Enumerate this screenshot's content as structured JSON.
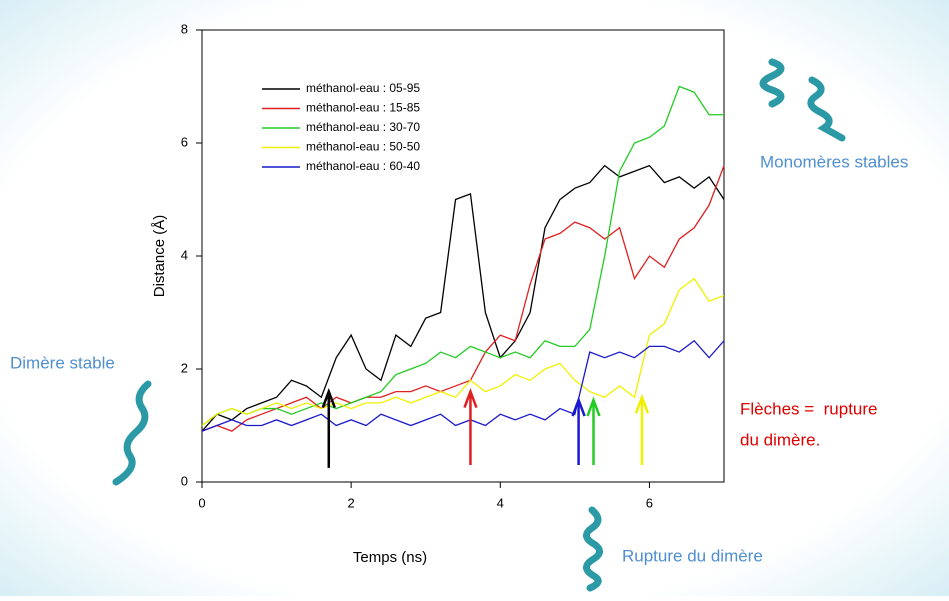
{
  "chart_data": {
    "type": "line",
    "xlabel": "Temps (ns)",
    "ylabel": "Distance (Å)",
    "x": [
      0,
      0.2,
      0.4,
      0.6,
      0.8,
      1.0,
      1.2,
      1.4,
      1.6,
      1.8,
      2.0,
      2.2,
      2.4,
      2.6,
      2.8,
      3.0,
      3.2,
      3.4,
      3.6,
      3.8,
      4.0,
      4.2,
      4.4,
      4.6,
      4.8,
      5.0,
      5.2,
      5.4,
      5.6,
      5.8,
      6.0,
      6.2,
      6.4,
      6.6,
      6.8,
      7.0
    ],
    "series": [
      {
        "name": "méthanol-eau : 05-95",
        "color": "#000000",
        "values": [
          0.9,
          1.2,
          1.1,
          1.3,
          1.4,
          1.5,
          1.8,
          1.7,
          1.5,
          2.2,
          2.6,
          2.0,
          1.8,
          2.6,
          2.4,
          2.9,
          3.0,
          5.0,
          5.1,
          3.0,
          2.2,
          2.5,
          3.0,
          4.5,
          5.0,
          5.2,
          5.3,
          5.6,
          5.4,
          5.5,
          5.6,
          5.3,
          5.4,
          5.2,
          5.4,
          5.0
        ]
      },
      {
        "name": "méthanol-eau : 15-85",
        "color": "#e02020",
        "values": [
          0.9,
          1.0,
          0.9,
          1.1,
          1.2,
          1.3,
          1.4,
          1.5,
          1.3,
          1.5,
          1.4,
          1.5,
          1.5,
          1.6,
          1.6,
          1.7,
          1.6,
          1.7,
          1.8,
          2.3,
          2.6,
          2.5,
          3.5,
          4.3,
          4.4,
          4.6,
          4.5,
          4.3,
          4.5,
          3.6,
          4.0,
          3.8,
          4.3,
          4.5,
          4.9,
          5.6
        ]
      },
      {
        "name": "méthanol-eau : 30-70",
        "color": "#22cc22",
        "values": [
          1.0,
          1.2,
          1.3,
          1.2,
          1.3,
          1.3,
          1.2,
          1.3,
          1.4,
          1.3,
          1.4,
          1.5,
          1.6,
          1.9,
          2.0,
          2.1,
          2.3,
          2.2,
          2.4,
          2.3,
          2.2,
          2.3,
          2.2,
          2.5,
          2.4,
          2.4,
          2.7,
          4.0,
          5.5,
          6.0,
          6.1,
          6.3,
          7.0,
          6.9,
          6.5,
          6.5
        ]
      },
      {
        "name": "méthanol-eau : 50-50",
        "color": "#f0f000",
        "values": [
          1.0,
          1.2,
          1.3,
          1.2,
          1.3,
          1.4,
          1.3,
          1.4,
          1.3,
          1.4,
          1.3,
          1.4,
          1.4,
          1.5,
          1.4,
          1.5,
          1.6,
          1.5,
          1.8,
          1.6,
          1.7,
          1.9,
          1.8,
          2.0,
          2.1,
          1.8,
          1.6,
          1.5,
          1.7,
          1.5,
          2.6,
          2.8,
          3.4,
          3.6,
          3.2,
          3.3
        ]
      },
      {
        "name": "méthanol-eau : 60-40",
        "color": "#1a1acc",
        "values": [
          0.9,
          1.0,
          1.1,
          1.0,
          1.0,
          1.1,
          1.0,
          1.1,
          1.2,
          1.0,
          1.1,
          1.0,
          1.2,
          1.1,
          1.0,
          1.1,
          1.2,
          1.0,
          1.1,
          1.0,
          1.2,
          1.1,
          1.2,
          1.1,
          1.3,
          1.2,
          2.3,
          2.2,
          2.3,
          2.2,
          2.4,
          2.4,
          2.3,
          2.5,
          2.2,
          2.5
        ]
      }
    ],
    "xlim": [
      0,
      7
    ],
    "xticks": [
      0,
      2,
      4,
      6
    ],
    "ylim": [
      0,
      8
    ],
    "yticks": [
      0,
      2,
      4,
      6,
      8
    ],
    "arrows": [
      {
        "x": 1.7,
        "y0": 0.25,
        "y1": 1.6,
        "color": "#000000"
      },
      {
        "x": 3.6,
        "y0": 0.3,
        "y1": 1.6,
        "color": "#e02020"
      },
      {
        "x": 5.05,
        "y0": 0.3,
        "y1": 1.45,
        "color": "#1a1acc"
      },
      {
        "x": 5.25,
        "y0": 0.3,
        "y1": 1.45,
        "color": "#22cc22"
      },
      {
        "x": 5.9,
        "y0": 0.3,
        "y1": 1.5,
        "color": "#f0f000"
      }
    ],
    "annotations": [
      "Dimère stable",
      "Monomères stables",
      "Flèches =  rupture",
      "du dimère.",
      "Rupture du dimère"
    ]
  }
}
